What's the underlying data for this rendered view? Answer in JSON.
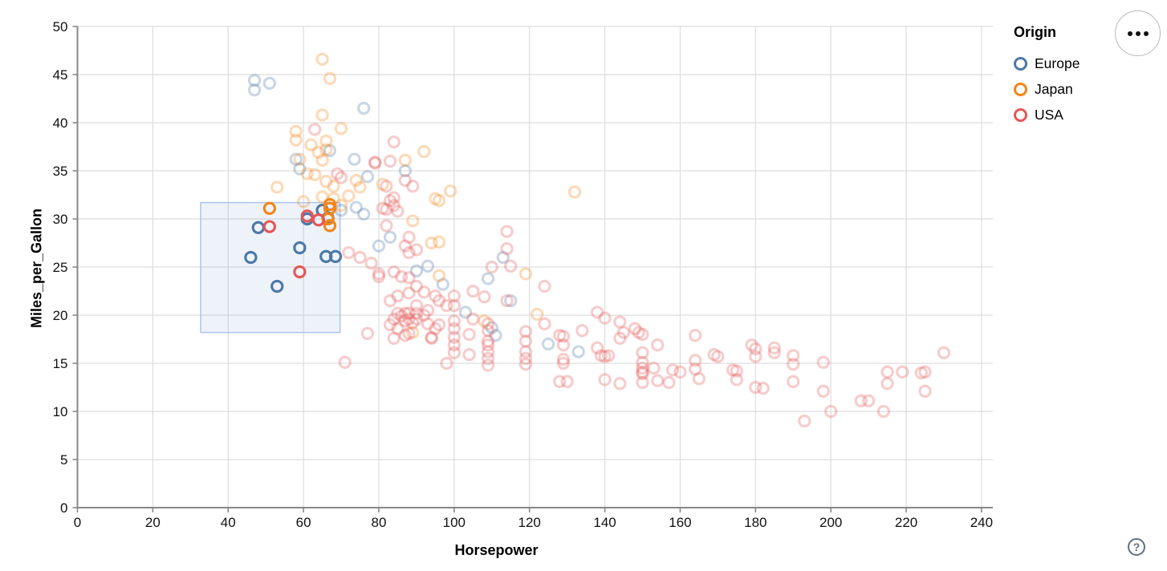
{
  "widgets": {
    "menu_button_name": "chart actions",
    "help_label": "?"
  },
  "chart_data": {
    "type": "scatter",
    "title": "",
    "xlabel": "Horsepower",
    "ylabel": "Miles_per_Gallon",
    "xlim": [
      0,
      243
    ],
    "ylim": [
      0,
      50
    ],
    "x_ticks": [
      0,
      20,
      40,
      60,
      80,
      100,
      120,
      140,
      160,
      180,
      200,
      220,
      240
    ],
    "y_ticks": [
      0,
      5,
      10,
      15,
      20,
      25,
      30,
      35,
      40,
      45,
      50
    ],
    "grid": true,
    "legend": {
      "title": "Origin",
      "position": "top-right",
      "entries": [
        {
          "label": "Europe",
          "color": "#4c78a8"
        },
        {
          "label": "Japan",
          "color": "#f58518"
        },
        {
          "label": "USA",
          "color": "#e45756"
        }
      ]
    },
    "brush_selection": {
      "x": [
        32.7,
        69.7
      ],
      "y": [
        18.2,
        31.7
      ],
      "fill": "rgba(90,140,210,0.10)",
      "stroke": "#aac4ec"
    },
    "unselected_opacity": 0.3,
    "series": [
      {
        "name": "Europe",
        "color": "#4c78a8",
        "points": [
          [
            46,
            26
          ],
          [
            48,
            29.1
          ],
          [
            53,
            23
          ],
          [
            59,
            27
          ],
          [
            61,
            30
          ],
          [
            65,
            30.9
          ],
          [
            66.5,
            30.1
          ],
          [
            66,
            26.1
          ],
          [
            68.5,
            26.1
          ],
          [
            47,
            44.4
          ],
          [
            51,
            44.1
          ],
          [
            47,
            43.4
          ],
          [
            76,
            41.5
          ],
          [
            58,
            36.2
          ],
          [
            59,
            35.2
          ],
          [
            67,
            37.1
          ],
          [
            73.5,
            36.2
          ],
          [
            77,
            34.4
          ],
          [
            87,
            35
          ],
          [
            70,
            30.9
          ],
          [
            74,
            31.2
          ],
          [
            76,
            30.5
          ],
          [
            80,
            27.2
          ],
          [
            83,
            28.1
          ],
          [
            90,
            24.6
          ],
          [
            93,
            25.1
          ],
          [
            97,
            23.2
          ],
          [
            103,
            20.3
          ],
          [
            109,
            23.8
          ],
          [
            113,
            26
          ],
          [
            115,
            21.5
          ],
          [
            110,
            18.7
          ],
          [
            111,
            17.9
          ],
          [
            125,
            17
          ],
          [
            133,
            16.2
          ]
        ]
      },
      {
        "name": "Japan",
        "color": "#f58518",
        "points": [
          [
            51,
            31.1
          ],
          [
            67,
            31.5
          ],
          [
            67,
            31.1
          ],
          [
            66.5,
            30
          ],
          [
            67,
            29.3
          ],
          [
            65,
            46.6
          ],
          [
            67,
            44.6
          ],
          [
            65,
            40.8
          ],
          [
            70,
            39.4
          ],
          [
            58,
            39.1
          ],
          [
            58,
            38.2
          ],
          [
            66,
            38.1
          ],
          [
            62,
            37.7
          ],
          [
            66,
            37.2
          ],
          [
            64,
            36.9
          ],
          [
            59,
            36.2
          ],
          [
            65,
            36.1
          ],
          [
            61,
            34.7
          ],
          [
            63,
            34.6
          ],
          [
            66,
            33.9
          ],
          [
            68,
            33.4
          ],
          [
            74,
            34
          ],
          [
            75,
            33.3
          ],
          [
            81,
            33.6
          ],
          [
            53,
            33.3
          ],
          [
            60,
            31.8
          ],
          [
            65,
            32.3
          ],
          [
            68,
            32.1
          ],
          [
            70,
            31.4
          ],
          [
            72,
            32.4
          ],
          [
            87,
            36.1
          ],
          [
            92,
            37
          ],
          [
            95,
            32.1
          ],
          [
            96,
            31.9
          ],
          [
            99,
            32.9
          ],
          [
            89,
            29.8
          ],
          [
            94,
            27.5
          ],
          [
            96,
            27.6
          ],
          [
            96,
            24.1
          ],
          [
            108,
            19.4
          ],
          [
            119,
            24.3
          ],
          [
            122,
            20.1
          ],
          [
            132,
            32.8
          ],
          [
            89,
            18.2
          ]
        ]
      },
      {
        "name": "USA",
        "color": "#e45756",
        "points": [
          [
            51,
            29.2
          ],
          [
            61,
            30.3
          ],
          [
            64,
            29.9
          ],
          [
            59,
            24.5
          ],
          [
            63,
            39.3
          ],
          [
            79,
            35.9
          ],
          [
            79,
            35.8
          ],
          [
            83,
            36
          ],
          [
            84,
            38
          ],
          [
            69,
            34.7
          ],
          [
            70,
            34.3
          ],
          [
            82,
            33.4
          ],
          [
            87,
            34
          ],
          [
            89,
            33.4
          ],
          [
            81,
            31.1
          ],
          [
            83,
            31.9
          ],
          [
            84,
            31.4
          ],
          [
            82,
            31
          ],
          [
            84,
            32.2
          ],
          [
            85,
            30.8
          ],
          [
            82,
            29.3
          ],
          [
            88,
            28.1
          ],
          [
            87,
            27.2
          ],
          [
            88,
            26.5
          ],
          [
            90,
            26.8
          ],
          [
            72,
            26.5
          ],
          [
            75,
            26
          ],
          [
            78,
            25.4
          ],
          [
            80,
            24.3
          ],
          [
            80,
            24
          ],
          [
            84,
            24.5
          ],
          [
            86,
            24
          ],
          [
            88,
            23.9
          ],
          [
            90,
            23
          ],
          [
            92,
            22.4
          ],
          [
            88,
            22.3
          ],
          [
            85,
            22
          ],
          [
            83,
            21.5
          ],
          [
            90,
            21
          ],
          [
            95,
            22
          ],
          [
            96,
            21.5
          ],
          [
            98,
            21
          ],
          [
            100,
            22
          ],
          [
            100,
            21
          ],
          [
            93,
            20.5
          ],
          [
            85,
            20.2
          ],
          [
            86,
            19.9
          ],
          [
            87,
            20.2
          ],
          [
            88,
            20.2
          ],
          [
            88,
            19.6
          ],
          [
            90,
            20.2
          ],
          [
            90,
            19.6
          ],
          [
            92,
            20
          ],
          [
            84,
            19.6
          ],
          [
            83,
            19
          ],
          [
            87,
            19.4
          ],
          [
            89,
            19.2
          ],
          [
            93,
            19.1
          ],
          [
            96,
            19
          ],
          [
            85,
            18.6
          ],
          [
            88,
            18.1
          ],
          [
            84,
            17.6
          ],
          [
            87,
            17.9
          ],
          [
            94,
            17.6
          ],
          [
            95,
            18.6
          ],
          [
            94,
            17.7
          ],
          [
            98,
            15
          ],
          [
            71,
            15.1
          ],
          [
            77,
            18.1
          ],
          [
            114,
            28.7
          ],
          [
            114,
            26.9
          ],
          [
            115,
            25.1
          ],
          [
            110,
            25
          ],
          [
            114,
            21.5
          ],
          [
            105,
            22.5
          ],
          [
            108,
            21.9
          ],
          [
            100,
            19.4
          ],
          [
            100,
            18.6
          ],
          [
            100,
            17.7
          ],
          [
            100,
            16.9
          ],
          [
            100,
            16.1
          ],
          [
            104,
            18
          ],
          [
            104,
            15.9
          ],
          [
            105,
            19.6
          ],
          [
            109,
            19.1
          ],
          [
            109,
            18.4
          ],
          [
            109,
            17.3
          ],
          [
            109,
            16.9
          ],
          [
            109,
            16.2
          ],
          [
            109,
            15.5
          ],
          [
            109,
            14.8
          ],
          [
            119,
            18.3
          ],
          [
            119,
            17.3
          ],
          [
            119,
            16.2
          ],
          [
            119,
            15.5
          ],
          [
            119,
            14.9
          ],
          [
            124,
            19.1
          ],
          [
            124,
            23
          ],
          [
            128,
            17.9
          ],
          [
            129,
            17.8
          ],
          [
            129,
            16.9
          ],
          [
            129,
            15.4
          ],
          [
            129,
            15
          ],
          [
            128,
            13.1
          ],
          [
            130,
            13.1
          ],
          [
            134,
            18.4
          ],
          [
            138,
            20.3
          ],
          [
            140,
            19.7
          ],
          [
            138,
            16.6
          ],
          [
            139,
            15.8
          ],
          [
            140,
            15.7
          ],
          [
            141,
            15.8
          ],
          [
            140,
            13.3
          ],
          [
            144,
            19.3
          ],
          [
            144,
            17.6
          ],
          [
            144,
            12.9
          ],
          [
            145,
            18.2
          ],
          [
            148,
            18.6
          ],
          [
            149,
            18.2
          ],
          [
            150,
            18
          ],
          [
            150,
            16.1
          ],
          [
            150,
            15.1
          ],
          [
            150,
            14.5
          ],
          [
            150,
            14.1
          ],
          [
            150,
            13.9
          ],
          [
            150,
            13
          ],
          [
            153,
            14.5
          ],
          [
            154,
            16.9
          ],
          [
            154,
            13.2
          ],
          [
            157,
            13
          ],
          [
            158,
            14.3
          ],
          [
            160,
            14.1
          ],
          [
            164,
            17.9
          ],
          [
            164,
            15.3
          ],
          [
            164,
            14.4
          ],
          [
            165,
            13.4
          ],
          [
            169,
            15.9
          ],
          [
            170,
            15.7
          ],
          [
            174,
            14.3
          ],
          [
            175,
            14.2
          ],
          [
            175,
            13.3
          ],
          [
            179,
            16.9
          ],
          [
            180,
            16.5
          ],
          [
            180,
            15.7
          ],
          [
            180,
            12.5
          ],
          [
            182,
            12.4
          ],
          [
            185,
            16.6
          ],
          [
            185,
            16.1
          ],
          [
            190,
            15.8
          ],
          [
            190,
            14.9
          ],
          [
            190,
            13.1
          ],
          [
            193,
            9
          ],
          [
            198,
            15.1
          ],
          [
            198,
            12.1
          ],
          [
            200,
            10
          ],
          [
            208,
            11.1
          ],
          [
            210,
            11.1
          ],
          [
            215,
            14.1
          ],
          [
            215,
            12.9
          ],
          [
            214,
            10
          ],
          [
            219,
            14.1
          ],
          [
            225,
            14.1
          ],
          [
            224,
            14
          ],
          [
            225,
            12.1
          ],
          [
            230,
            16.1
          ]
        ]
      }
    ]
  }
}
